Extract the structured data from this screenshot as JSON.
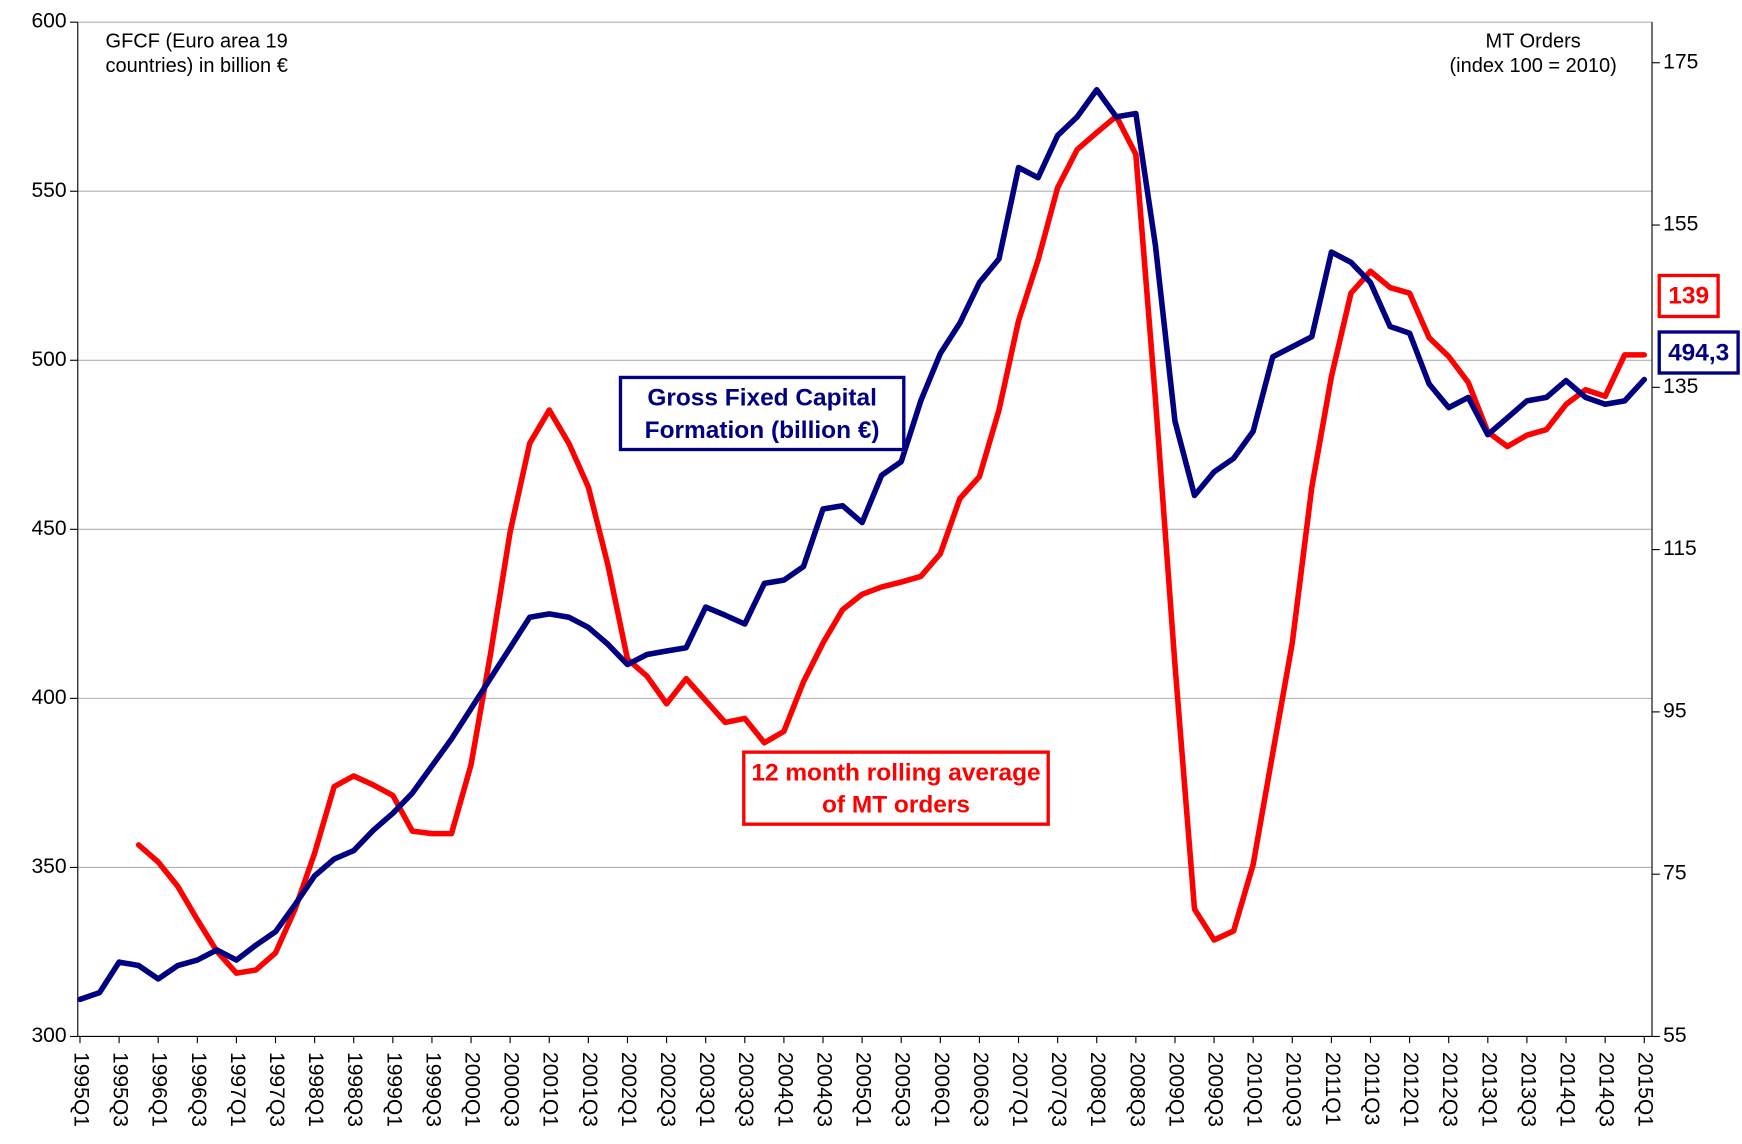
{
  "chart_data": {
    "type": "line",
    "y_label": [
      "GFCF (Euro area 19",
      "countries) in billion €"
    ],
    "y2_label": [
      "MT Orders",
      "(index 100 = 2010)"
    ],
    "categories": [
      "1995Q1",
      null,
      "1995Q3",
      null,
      "1996Q1",
      null,
      "1996Q3",
      null,
      "1997Q1",
      null,
      "1997Q3",
      null,
      "1998Q1",
      null,
      "1998Q3",
      null,
      "1999Q1",
      null,
      "1999Q3",
      null,
      "2000Q1",
      null,
      "2000Q3",
      null,
      "2001Q1",
      null,
      "2001Q3",
      null,
      "2002Q1",
      null,
      "2002Q3",
      null,
      "2003Q1",
      null,
      "2003Q3",
      null,
      "2004Q1",
      null,
      "2004Q3",
      null,
      "2005Q1",
      null,
      "2005Q3",
      null,
      "2006Q1",
      null,
      "2006Q3",
      null,
      "2007Q1",
      null,
      "2007Q3",
      null,
      "2008Q1",
      null,
      "2008Q3",
      null,
      "2009Q1",
      null,
      "2009Q3",
      null,
      "2010Q1",
      null,
      "2010Q3",
      null,
      "2011Q1",
      null,
      "2011Q3",
      null,
      "2012Q1",
      null,
      "2012Q3",
      null,
      "2013Q1",
      null,
      "2013Q3",
      null,
      "2014Q1",
      null,
      "2014Q3",
      null,
      "2015Q1"
    ],
    "series": [
      {
        "name": "Gross Fixed Capital Formation (billion €)",
        "color": "#000080",
        "axis": "y",
        "values": [
          311,
          313,
          322,
          321,
          317,
          321,
          322.6,
          325.6,
          322.6,
          327,
          331,
          339,
          347.5,
          352.5,
          355,
          361,
          366,
          372,
          380,
          388,
          397,
          406,
          415,
          424,
          425,
          424,
          421,
          416,
          410,
          413,
          414,
          415,
          427,
          424.6,
          422,
          434,
          435,
          439,
          456,
          457,
          452,
          466,
          470,
          488,
          502,
          511,
          523,
          530,
          557,
          554,
          566.5,
          572,
          580,
          572,
          573,
          534,
          482,
          460,
          467,
          471,
          479,
          501,
          504,
          507,
          532,
          529,
          523,
          510,
          508,
          493,
          486,
          489,
          478,
          483,
          488,
          489,
          494,
          489,
          487,
          488,
          494.3
        ],
        "value_labels": [
          null,
          null,
          null,
          null,
          null,
          null,
          null,
          null,
          null,
          null,
          null,
          null,
          null,
          null,
          null,
          null,
          null,
          null,
          null,
          null,
          null,
          null,
          null,
          null,
          null,
          null,
          null,
          null,
          null,
          null,
          null,
          null,
          null,
          null,
          null,
          null,
          null,
          null,
          null,
          null,
          null,
          null,
          null,
          null,
          null,
          null,
          null,
          null,
          null,
          null,
          null,
          null,
          null,
          null,
          null,
          null,
          null,
          null,
          null,
          null,
          null,
          null,
          null,
          null,
          null,
          null,
          null,
          null,
          null,
          null,
          null,
          null,
          null,
          null,
          null,
          null,
          null,
          null,
          null,
          null,
          "494,3"
        ]
      },
      {
        "name": "12 month rolling average of MT orders",
        "color": "#ff0000",
        "axis": "y2",
        "values": [
          null,
          null,
          null,
          78.6,
          76.5,
          73.5,
          69.4,
          65.5,
          62.8,
          63.2,
          65.3,
          70.7,
          77.6,
          85.8,
          87.1,
          86,
          84.7,
          80.3,
          80,
          80,
          88.5,
          102.2,
          117.2,
          128.1,
          132.2,
          128.1,
          122.7,
          113.1,
          101.5,
          99.4,
          96,
          99.1,
          96.4,
          93.7,
          94.2,
          91.2,
          92.6,
          98.7,
          103.5,
          107.6,
          109.5,
          110.4,
          111,
          111.7,
          114.5,
          121.3,
          124,
          132.2,
          143.2,
          150.7,
          159.6,
          164.3,
          166.4,
          168.4,
          163.7,
          133.6,
          100.8,
          70.7,
          66.9,
          68,
          76.2,
          89.9,
          103.5,
          122.7,
          136.3,
          146.6,
          149.3,
          147.3,
          146.6,
          141.1,
          138.8,
          135.6,
          129.5,
          127.7,
          129.1,
          129.8,
          132.9,
          134.7,
          133.9,
          139,
          139
        ],
        "value_labels": [
          null,
          null,
          null,
          null,
          null,
          null,
          null,
          null,
          null,
          null,
          null,
          null,
          null,
          null,
          null,
          null,
          null,
          null,
          null,
          null,
          null,
          null,
          null,
          null,
          null,
          null,
          null,
          null,
          null,
          null,
          null,
          null,
          null,
          null,
          null,
          null,
          null,
          null,
          null,
          null,
          null,
          null,
          null,
          null,
          null,
          null,
          null,
          null,
          null,
          null,
          null,
          null,
          null,
          null,
          null,
          null,
          null,
          null,
          null,
          null,
          null,
          null,
          null,
          null,
          null,
          null,
          null,
          null,
          null,
          null,
          null,
          null,
          null,
          null,
          null,
          null,
          null,
          null,
          null,
          null,
          "139"
        ]
      }
    ],
    "ylim": [
      300,
      600
    ],
    "yticks": [
      300,
      350,
      400,
      450,
      500,
      550,
      600
    ],
    "y2lim": [
      55,
      180
    ],
    "y2ticks": [
      55,
      75,
      95,
      115,
      135,
      155,
      175
    ],
    "grid": true
  }
}
